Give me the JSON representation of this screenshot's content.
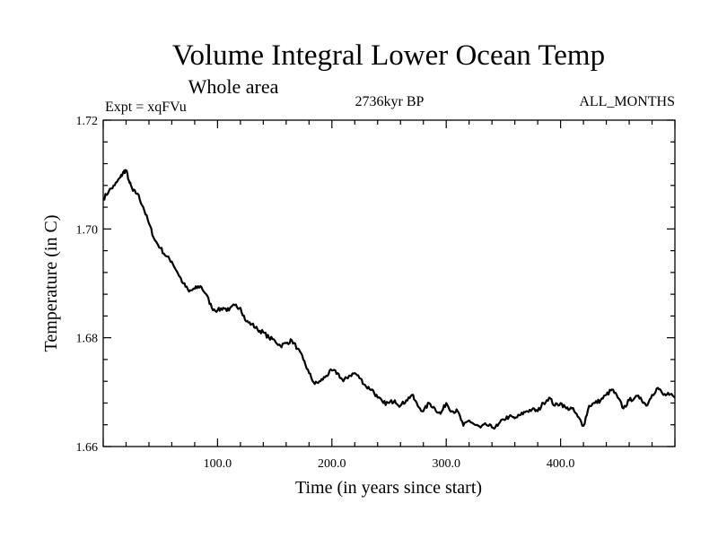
{
  "chart_data": {
    "type": "line",
    "title": "Volume Integral Lower Ocean Temp",
    "subtitle": "Whole area",
    "experiment": "Expt = xqFVu",
    "period": "2736kyr BP",
    "months": "ALL_MONTHS",
    "xlabel": "Time (in years since start)",
    "ylabel": "Temperature (in C)",
    "xlim": [
      0,
      500
    ],
    "ylim": [
      1.66,
      1.72
    ],
    "xticks": [
      100,
      200,
      300,
      400
    ],
    "xtick_labels": [
      "100.0",
      "200.0",
      "300.0",
      "400.0"
    ],
    "yticks": [
      1.66,
      1.68,
      1.7,
      1.72
    ],
    "ytick_labels": [
      "1.66",
      "1.68",
      "1.70",
      "1.72"
    ],
    "series": [
      {
        "name": "Volume integral lower ocean temperature",
        "x": [
          0,
          5,
          10,
          15,
          18,
          20,
          23,
          26,
          30,
          35,
          40,
          45,
          50,
          55,
          60,
          65,
          70,
          75,
          80,
          85,
          90,
          95,
          100,
          105,
          110,
          115,
          120,
          125,
          130,
          135,
          140,
          145,
          150,
          155,
          160,
          165,
          170,
          175,
          180,
          185,
          190,
          195,
          200,
          205,
          210,
          215,
          220,
          225,
          230,
          235,
          240,
          245,
          250,
          255,
          260,
          265,
          270,
          275,
          280,
          285,
          290,
          295,
          300,
          305,
          310,
          315,
          320,
          325,
          330,
          335,
          340,
          345,
          350,
          355,
          360,
          365,
          370,
          375,
          380,
          385,
          390,
          395,
          400,
          405,
          410,
          415,
          420,
          425,
          430,
          435,
          440,
          445,
          450,
          455,
          460,
          465,
          470,
          475,
          480,
          485,
          490,
          495,
          500
        ],
        "y": [
          1.7055,
          1.707,
          1.708,
          1.7095,
          1.7105,
          1.7108,
          1.7085,
          1.707,
          1.7065,
          1.704,
          1.701,
          1.698,
          1.6965,
          1.695,
          1.694,
          1.692,
          1.69,
          1.6885,
          1.689,
          1.6895,
          1.688,
          1.6855,
          1.685,
          1.6855,
          1.685,
          1.686,
          1.6855,
          1.683,
          1.6825,
          1.6815,
          1.681,
          1.68,
          1.6795,
          1.6785,
          1.679,
          1.6795,
          1.678,
          1.676,
          1.6735,
          1.6715,
          1.672,
          1.673,
          1.674,
          1.6735,
          1.672,
          1.673,
          1.6735,
          1.6725,
          1.671,
          1.6705,
          1.669,
          1.668,
          1.668,
          1.6685,
          1.6675,
          1.6685,
          1.6695,
          1.6675,
          1.6665,
          1.668,
          1.667,
          1.666,
          1.668,
          1.6665,
          1.6665,
          1.6638,
          1.6648,
          1.664,
          1.6635,
          1.664,
          1.6635,
          1.6638,
          1.665,
          1.6655,
          1.6652,
          1.6658,
          1.6665,
          1.6668,
          1.6665,
          1.668,
          1.669,
          1.6675,
          1.668,
          1.667,
          1.667,
          1.6655,
          1.6638,
          1.6675,
          1.668,
          1.6685,
          1.6695,
          1.6705,
          1.669,
          1.667,
          1.6685,
          1.669,
          1.669,
          1.6675,
          1.6695,
          1.6708,
          1.6695,
          1.6695,
          1.669
        ]
      }
    ]
  }
}
